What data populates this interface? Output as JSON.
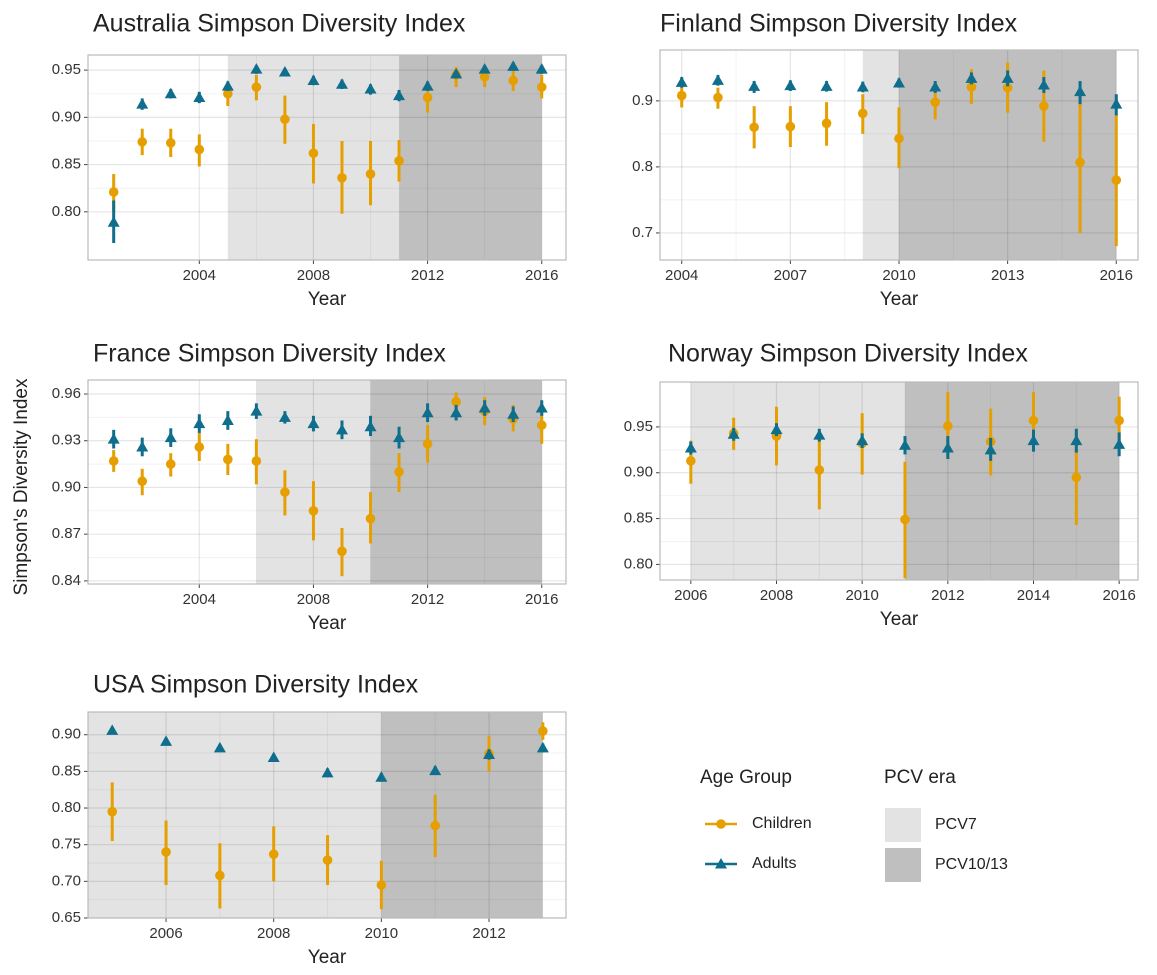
{
  "y_label": "Simpson's Diversity Index",
  "legend": {
    "age_title": "Age Group",
    "era_title": "PCV era"
  },
  "chart_data": [
    {
      "type": "scatter",
      "title": "Australia Simpson Diversity Index",
      "x_label": "Year",
      "x": [
        2001,
        2002,
        2003,
        2004,
        2005,
        2006,
        2007,
        2008,
        2009,
        2010,
        2011,
        2012,
        2013,
        2014,
        2015,
        2016
      ],
      "series": [
        {
          "name": "Children",
          "color": "#E69F00",
          "marker": "circle",
          "values": [
            0.821,
            0.874,
            0.873,
            0.866,
            0.925,
            0.932,
            0.898,
            0.862,
            0.836,
            0.84,
            0.854,
            0.921,
            0.945,
            0.943,
            0.939,
            0.932
          ],
          "lower": [
            0.8,
            0.86,
            0.858,
            0.848,
            0.912,
            0.918,
            0.872,
            0.83,
            0.798,
            0.807,
            0.832,
            0.905,
            0.932,
            0.932,
            0.928,
            0.92
          ],
          "upper": [
            0.84,
            0.888,
            0.888,
            0.882,
            0.935,
            0.945,
            0.923,
            0.893,
            0.875,
            0.875,
            0.876,
            0.932,
            0.953,
            0.952,
            0.95,
            0.945
          ]
        },
        {
          "name": "Adults",
          "color": "#0F6E8C",
          "marker": "triangle",
          "values": [
            0.789,
            0.914,
            0.925,
            0.921,
            0.933,
            0.951,
            0.948,
            0.939,
            0.935,
            0.93,
            0.923,
            0.933,
            0.946,
            0.951,
            0.954,
            0.951
          ],
          "lower": [
            0.767,
            0.908,
            0.92,
            0.915,
            0.928,
            0.946,
            0.944,
            0.934,
            0.93,
            0.924,
            0.917,
            0.928,
            0.941,
            0.947,
            0.95,
            0.946
          ],
          "upper": [
            0.812,
            0.92,
            0.93,
            0.927,
            0.938,
            0.955,
            0.952,
            0.944,
            0.94,
            0.935,
            0.929,
            0.938,
            0.95,
            0.955,
            0.958,
            0.955
          ]
        }
      ],
      "shading": [
        {
          "name": "PCV7",
          "from": 2005,
          "to": 2011,
          "color": "#e3e3e3"
        },
        {
          "name": "PCV10/13",
          "from": 2011,
          "to": 2016,
          "color": "#bfbfbf"
        }
      ],
      "xlim": [
        2000.1,
        2016.85
      ],
      "ylim": [
        0.749,
        0.966
      ],
      "xticks": [
        2004,
        2008,
        2012,
        2016
      ],
      "yticks": [
        {
          "value": 0.8,
          "label": "0.80"
        },
        0.85,
        {
          "value": 0.9,
          "label": "0.90"
        },
        0.95
      ]
    },
    {
      "type": "scatter",
      "title": "Finland Simpson Diversity Index",
      "x_label": "Year",
      "x": [
        2004,
        2005,
        2006,
        2007,
        2008,
        2009,
        2010,
        2011,
        2012,
        2013,
        2014,
        2015,
        2016
      ],
      "series": [
        {
          "name": "Children",
          "color": "#E69F00",
          "marker": "circle",
          "values": [
            0.908,
            0.905,
            0.86,
            0.861,
            0.866,
            0.881,
            0.843,
            0.898,
            0.921,
            0.92,
            0.892,
            0.807,
            0.78
          ],
          "lower": [
            0.89,
            0.888,
            0.828,
            0.83,
            0.832,
            0.85,
            0.798,
            0.872,
            0.895,
            0.882,
            0.838,
            0.7,
            0.68
          ],
          "upper": [
            0.925,
            0.92,
            0.892,
            0.892,
            0.898,
            0.91,
            0.89,
            0.922,
            0.948,
            0.958,
            0.946,
            0.912,
            0.88
          ]
        },
        {
          "name": "Adults",
          "color": "#0F6E8C",
          "marker": "triangle",
          "values": [
            0.928,
            0.931,
            0.922,
            0.923,
            0.922,
            0.921,
            0.927,
            0.921,
            0.934,
            0.934,
            0.924,
            0.914,
            0.895
          ],
          "lower": [
            0.92,
            0.923,
            0.912,
            0.915,
            0.914,
            0.913,
            0.92,
            0.912,
            0.925,
            0.922,
            0.912,
            0.895,
            0.878
          ],
          "upper": [
            0.936,
            0.939,
            0.93,
            0.931,
            0.93,
            0.929,
            0.934,
            0.93,
            0.943,
            0.946,
            0.936,
            0.93,
            0.91
          ]
        }
      ],
      "shading": [
        {
          "name": "PCV7",
          "from": 2009,
          "to": 2010,
          "color": "#e3e3e3"
        },
        {
          "name": "PCV10/13",
          "from": 2010,
          "to": 2016,
          "color": "#bfbfbf"
        }
      ],
      "xlim": [
        2003.4,
        2016.6
      ],
      "ylim": [
        0.659,
        0.977
      ],
      "xticks": [
        2004,
        2007,
        2010,
        2013,
        2016
      ],
      "yticks": [
        0.7,
        0.8,
        0.9
      ]
    },
    {
      "type": "scatter",
      "title": "France Simpson Diversity Index",
      "x_label": "Year",
      "x": [
        2001,
        2002,
        2003,
        2004,
        2005,
        2006,
        2007,
        2008,
        2009,
        2010,
        2011,
        2012,
        2013,
        2014,
        2015,
        2016
      ],
      "series": [
        {
          "name": "Children",
          "color": "#E69F00",
          "marker": "circle",
          "values": [
            0.917,
            0.904,
            0.915,
            0.926,
            0.918,
            0.917,
            0.897,
            0.885,
            0.859,
            0.88,
            0.91,
            0.928,
            0.955,
            0.949,
            0.944,
            0.94
          ],
          "lower": [
            0.91,
            0.895,
            0.907,
            0.917,
            0.908,
            0.902,
            0.882,
            0.866,
            0.843,
            0.864,
            0.897,
            0.916,
            0.949,
            0.94,
            0.936,
            0.928
          ],
          "upper": [
            0.924,
            0.912,
            0.922,
            0.935,
            0.928,
            0.931,
            0.911,
            0.904,
            0.874,
            0.897,
            0.922,
            0.94,
            0.961,
            0.958,
            0.953,
            0.951
          ]
        },
        {
          "name": "Adults",
          "color": "#0F6E8C",
          "marker": "triangle",
          "values": [
            0.931,
            0.926,
            0.932,
            0.941,
            0.943,
            0.949,
            0.945,
            0.941,
            0.937,
            0.939,
            0.932,
            0.948,
            0.948,
            0.951,
            0.947,
            0.951
          ],
          "lower": [
            0.925,
            0.92,
            0.926,
            0.935,
            0.937,
            0.944,
            0.941,
            0.936,
            0.931,
            0.933,
            0.925,
            0.942,
            0.943,
            0.946,
            0.942,
            0.946
          ],
          "upper": [
            0.937,
            0.932,
            0.938,
            0.947,
            0.949,
            0.954,
            0.949,
            0.946,
            0.943,
            0.946,
            0.939,
            0.954,
            0.953,
            0.956,
            0.952,
            0.956
          ]
        }
      ],
      "shading": [
        {
          "name": "PCV7",
          "from": 2006,
          "to": 2010,
          "color": "#e3e3e3"
        },
        {
          "name": "PCV10/13",
          "from": 2010,
          "to": 2016,
          "color": "#bfbfbf"
        }
      ],
      "xlim": [
        2000.1,
        2016.85
      ],
      "ylim": [
        0.838,
        0.969
      ],
      "xticks": [
        2004,
        2008,
        2012,
        2016
      ],
      "yticks": [
        0.84,
        0.87,
        {
          "value": 0.9,
          "label": "0.90"
        },
        0.93,
        0.96
      ]
    },
    {
      "type": "scatter",
      "title": "Norway Simpson Diversity Index",
      "x_label": "Year",
      "x": [
        2006,
        2007,
        2008,
        2009,
        2010,
        2011,
        2012,
        2013,
        2014,
        2015,
        2016
      ],
      "series": [
        {
          "name": "Children",
          "color": "#E69F00",
          "marker": "circle",
          "values": [
            0.913,
            0.943,
            0.94,
            0.903,
            0.932,
            0.849,
            0.951,
            0.934,
            0.957,
            0.895,
            0.957
          ],
          "lower": [
            0.888,
            0.925,
            0.908,
            0.86,
            0.898,
            0.785,
            0.915,
            0.897,
            0.925,
            0.843,
            0.93
          ],
          "upper": [
            0.935,
            0.96,
            0.972,
            0.945,
            0.965,
            0.912,
            0.988,
            0.97,
            0.988,
            0.945,
            0.983
          ]
        },
        {
          "name": "Adults",
          "color": "#0F6E8C",
          "marker": "triangle",
          "values": [
            0.927,
            0.942,
            0.947,
            0.941,
            0.935,
            0.93,
            0.927,
            0.925,
            0.935,
            0.935,
            0.931
          ],
          "lower": [
            0.92,
            0.935,
            0.94,
            0.934,
            0.927,
            0.92,
            0.915,
            0.913,
            0.923,
            0.922,
            0.918
          ],
          "upper": [
            0.934,
            0.949,
            0.954,
            0.948,
            0.943,
            0.94,
            0.94,
            0.938,
            0.947,
            0.948,
            0.944
          ]
        }
      ],
      "shading": [
        {
          "name": "PCV7",
          "from": 2006,
          "to": 2011,
          "color": "#e3e3e3"
        },
        {
          "name": "PCV10/13",
          "from": 2011,
          "to": 2016,
          "color": "#bfbfbf"
        }
      ],
      "xlim": [
        2005.28,
        2016.44
      ],
      "ylim": [
        0.783,
        0.999
      ],
      "xticks": [
        2006,
        2008,
        2010,
        2012,
        2014,
        2016
      ],
      "yticks": [
        {
          "value": 0.8,
          "label": "0.80"
        },
        0.85,
        {
          "value": 0.9,
          "label": "0.90"
        },
        0.95
      ]
    },
    {
      "type": "scatter",
      "title": "USA Simpson Diversity Index",
      "x_label": "Year",
      "x": [
        2005,
        2006,
        2007,
        2008,
        2009,
        2010,
        2011,
        2012,
        2013
      ],
      "series": [
        {
          "name": "Children",
          "color": "#E69F00",
          "marker": "circle",
          "values": [
            0.795,
            0.74,
            0.708,
            0.737,
            0.729,
            0.695,
            0.776,
            0.874,
            0.905
          ],
          "lower": [
            0.755,
            0.695,
            0.663,
            0.7,
            0.695,
            0.662,
            0.733,
            0.85,
            0.893
          ],
          "upper": [
            0.835,
            0.783,
            0.752,
            0.775,
            0.763,
            0.728,
            0.818,
            0.898,
            0.917
          ]
        },
        {
          "name": "Adults",
          "color": "#0F6E8C",
          "marker": "triangle",
          "values": [
            0.906,
            0.891,
            0.882,
            0.869,
            0.848,
            0.842,
            0.851,
            0.873,
            0.882
          ],
          "lower": [
            0.902,
            0.886,
            0.877,
            0.864,
            0.842,
            0.836,
            0.845,
            0.866,
            0.876
          ],
          "upper": [
            0.91,
            0.896,
            0.887,
            0.874,
            0.854,
            0.848,
            0.857,
            0.88,
            0.888
          ]
        }
      ],
      "shading": [
        {
          "name": "PCV7",
          "from": 2000,
          "to": 2010,
          "color": "#e3e3e3"
        },
        {
          "name": "PCV10/13",
          "from": 2010,
          "to": 2013,
          "color": "#bfbfbf"
        }
      ],
      "xlim": [
        2004.55,
        2013.43
      ],
      "ylim": [
        0.65,
        0.931
      ],
      "xticks": [
        2006,
        2008,
        2010,
        2012
      ],
      "yticks": [
        0.65,
        {
          "value": 0.7,
          "label": "0.70"
        },
        0.75,
        {
          "value": 0.8,
          "label": "0.80"
        },
        0.85,
        {
          "value": 0.9,
          "label": "0.90"
        }
      ]
    }
  ]
}
